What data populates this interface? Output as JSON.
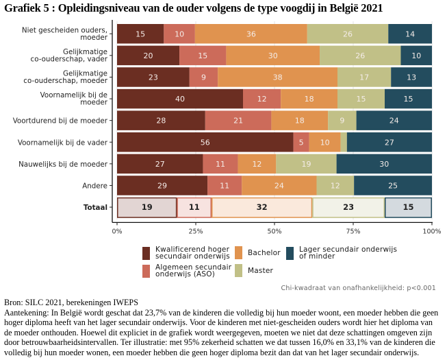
{
  "title": "Grafiek 5 : Opleidingsniveau van de ouder volgens de type voogdij in België 2021",
  "chart_data": {
    "type": "bar",
    "orientation": "horizontal-stacked-100",
    "title": "Grafiek 5 : Opleidingsniveau van de ouder volgens de type voogdij in België 2021",
    "xlabel": "",
    "ylabel": "",
    "xlim": [
      0,
      100
    ],
    "x_ticks": [
      "0%",
      "25%",
      "50%",
      "75%",
      "100%"
    ],
    "x_tick_values": [
      0,
      25,
      50,
      75,
      100
    ],
    "grid": true,
    "legend_position": "bottom",
    "categories": [
      [
        "Niet gescheiden ouders,",
        "moeder"
      ],
      [
        "Gelijkmatige",
        "co-ouderschap, vader"
      ],
      [
        "Gelijkmatige",
        "co-ouderschap, moeder"
      ],
      [
        "Voornamelijk bij de",
        "moeder"
      ],
      [
        "Voortdurend bij de moeder"
      ],
      [
        "Voornamelijk bij de vader"
      ],
      [
        "Nauwelijks bij de moeder"
      ],
      [
        "Andere"
      ],
      [
        "Totaal"
      ]
    ],
    "series": [
      {
        "name": "Kwalificerend hoger secundair onderwijs",
        "legend_lines": [
          "Kwalificerend hoger",
          "secundair onderwijs"
        ],
        "color": "#6b2e22",
        "total_fill": "#e2d5d3",
        "values": [
          15,
          20,
          23,
          40,
          28,
          56,
          27,
          29,
          19
        ]
      },
      {
        "name": "Algemeen secundair onderwijs (ASO)",
        "legend_lines": [
          "Algemeen secundair",
          "onderwijs (ASO)"
        ],
        "color": "#cc6b5a",
        "total_fill": "#f7e3e0",
        "values": [
          10,
          15,
          9,
          12,
          21,
          5,
          11,
          11,
          11
        ]
      },
      {
        "name": "Bachelor",
        "legend_lines": [
          "Bachelor"
        ],
        "color": "#e0934f",
        "total_fill": "#fae9dc",
        "values": [
          36,
          30,
          38,
          18,
          18,
          10,
          12,
          24,
          32
        ]
      },
      {
        "name": "Master",
        "legend_lines": [
          "Master"
        ],
        "color": "#c1c087",
        "total_fill": "#f2f2e8",
        "values": [
          26,
          26,
          17,
          15,
          9,
          2,
          19,
          12,
          23
        ]
      },
      {
        "name": "Lager secundair onderwijs of minder",
        "legend_lines": [
          "Lager secundair onderwijs",
          "of minder"
        ],
        "color": "#234c5e",
        "total_fill": "#d4dadf",
        "values": [
          14,
          10,
          13,
          15,
          24,
          27,
          30,
          25,
          15
        ]
      }
    ],
    "hidden_labels": [
      [
        5,
        3
      ]
    ],
    "total_row_index": 8
  },
  "annotation": "Chi-kwadraat van onafhankelijkheid: p<0.001",
  "footer": {
    "source": "Bron: SILC 2021, berekeningen IWEPS",
    "note": "Aantekening: In België wordt geschat dat 23,7% van de kinderen die volledig bij hun moeder woont, een moeder hebben die geen hoger diploma heeft van het lager secundair onderwijs. Voor de kinderen met niet-gescheiden ouders wordt hier het diploma van de moeder onthouden. Hoewel dit expliciet in de grafiek wordt weergegeven, moeten we niet dat deze schattingen omgeven zijn door betrouwbaarheidsintervallen. Ter illustratie:  met 95% zekerheid schatten we dat tussen 16,0% en 33,1% van de kinderen die volledig bij hun moeder wonen, een moeder hebben die geen hoger diploma bezit dan dat van het lager secundair onderwijs."
  }
}
